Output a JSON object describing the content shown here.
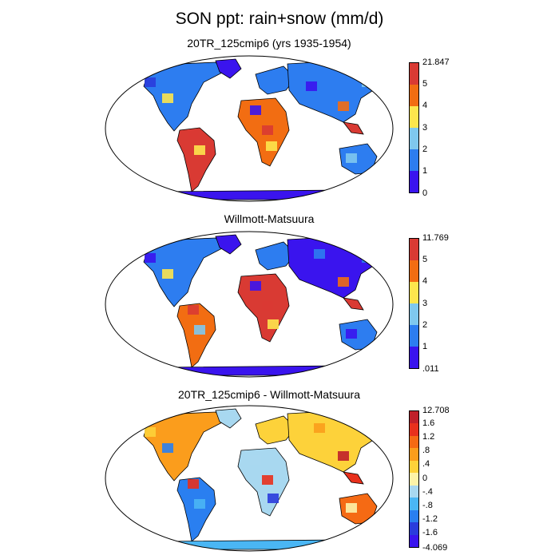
{
  "figure": {
    "title": "SON ppt: rain+snow (mm/d)"
  },
  "panels": [
    {
      "title": "20TR_125cmip6 (yrs 1935-1954)",
      "colorbar": {
        "labels": [
          "21.847",
          "5",
          "4",
          "3",
          "2",
          "1",
          "0"
        ],
        "colors": [
          "#d93a33",
          "#f26d12",
          "#fde64d",
          "#7fc8ee",
          "#2d7df0",
          "#3a14ee"
        ]
      }
    },
    {
      "title": "Willmott-Matsuura",
      "colorbar": {
        "labels": [
          "11.769",
          "5",
          "4",
          "3",
          "2",
          "1",
          ".011"
        ],
        "colors": [
          "#d93a33",
          "#f26d12",
          "#fde64d",
          "#7fc8ee",
          "#2d7df0",
          "#3a14ee"
        ]
      }
    },
    {
      "title": "20TR_125cmip6 - Willmott-Matsuura",
      "colorbar": {
        "labels": [
          "12.708",
          "1.6",
          "1.2",
          ".8",
          ".4",
          "0",
          "-.4",
          "-.8",
          "-1.2",
          "-1.6",
          "-4.069"
        ],
        "colors": [
          "#c0202a",
          "#e8301c",
          "#f56a14",
          "#fb9d1c",
          "#fdd23a",
          "#fdf3a8",
          "#a8d8f0",
          "#4ab6f4",
          "#2a7ff0",
          "#2a3cdc",
          "#3a14ee"
        ]
      }
    }
  ]
}
